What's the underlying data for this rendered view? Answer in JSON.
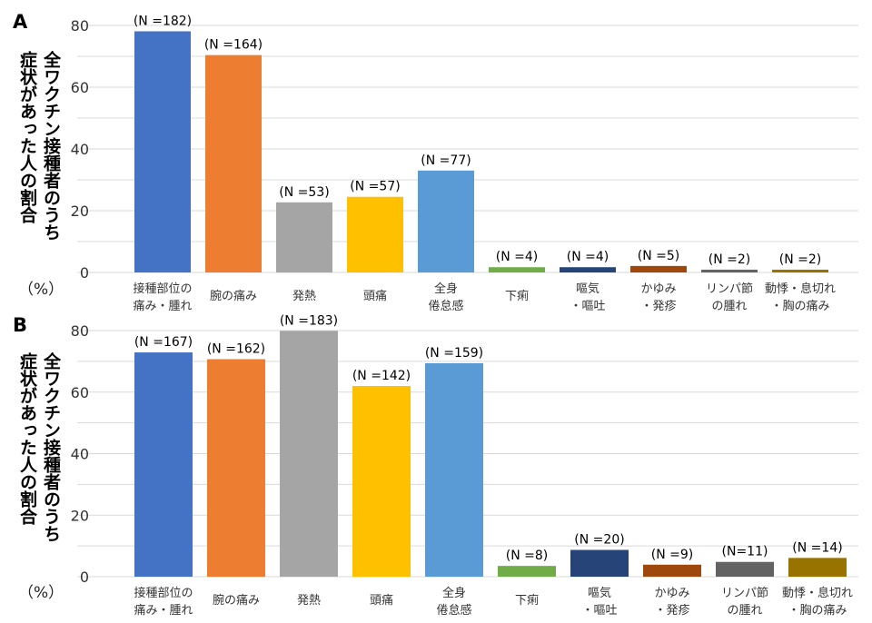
{
  "chart_data": [
    {
      "type": "bar",
      "panel": "A",
      "categories": [
        "接種部位の\n痛み・腫れ",
        "腕の痛み",
        "発熱",
        "頭痛",
        "全身\n倦怠感",
        "下痢",
        "嘔気\n・嘔吐",
        "かゆみ\n・発疹",
        "リンパ節\nの腫れ",
        "動悸・息切れ\n・胸の痛み"
      ],
      "values": [
        78.1,
        70.4,
        22.7,
        24.5,
        33.0,
        1.7,
        1.7,
        2.1,
        0.9,
        0.9
      ],
      "data_labels": [
        "(N =182)",
        "(N =164)",
        "(N =53)",
        "(N =57)",
        "(N =77)",
        "(N =4)",
        "(N =4)",
        "(N =5)",
        "(N =2)",
        "(N =2)"
      ],
      "colors": [
        "#4472C4",
        "#ED7D31",
        "#A5A5A5",
        "#FFC000",
        "#5B9BD5",
        "#70AD47",
        "#264478",
        "#9E480E",
        "#636363",
        "#997300"
      ],
      "yticks": [
        0,
        20,
        40,
        60,
        80
      ],
      "ylim": [
        0,
        80
      ],
      "ylabel": [
        "全ワクチン接種者のうち",
        "症状があった人の割合"
      ],
      "yunit": "（%）",
      "grid": true
    },
    {
      "type": "bar",
      "panel": "B",
      "categories": [
        "接種部位の\n痛み・腫れ",
        "腕の痛み",
        "発熱",
        "頭痛",
        "全身\n倦怠感",
        "下痢",
        "嘔気\n・嘔吐",
        "かゆみ\n・発疹",
        "リンパ節\nの腫れ",
        "動悸・息切れ\n・胸の痛み"
      ],
      "values": [
        72.9,
        70.7,
        79.9,
        62.0,
        69.4,
        3.5,
        8.7,
        3.9,
        4.8,
        6.1
      ],
      "data_labels": [
        "(N =167)",
        "(N =162)",
        "(N =183)",
        "(N =142)",
        "(N =159)",
        "(N =8)",
        "(N =20)",
        "(N =9)",
        "(N=11)",
        "(N =14)"
      ],
      "colors": [
        "#4472C4",
        "#ED7D31",
        "#A5A5A5",
        "#FFC000",
        "#5B9BD5",
        "#70AD47",
        "#264478",
        "#9E480E",
        "#636363",
        "#997300"
      ],
      "yticks": [
        0,
        20,
        40,
        60,
        80
      ],
      "ylim": [
        0,
        80
      ],
      "ylabel": [
        "全ワクチン接種者のうち",
        "症状があった人の割合"
      ],
      "yunit": "（%）",
      "grid": true
    }
  ]
}
